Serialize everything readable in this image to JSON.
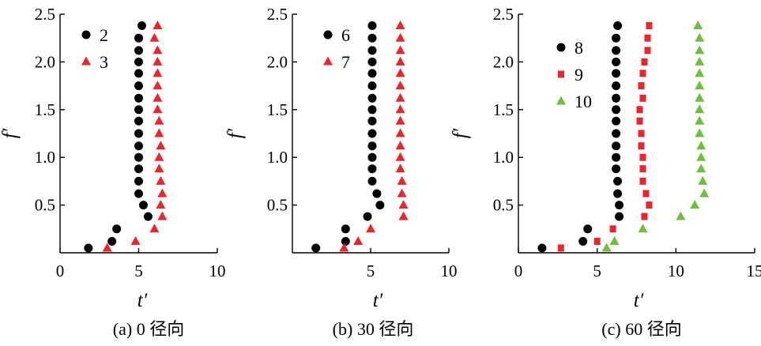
{
  "chart_data": [
    {
      "type": "scatter",
      "caption": "(a) 0 径向",
      "xlabel": "t′",
      "ylabel": "f′",
      "xlim": [
        0,
        10
      ],
      "ylim": [
        0,
        2.5
      ],
      "xticks": [
        {
          "value": 0,
          "label": "0"
        },
        {
          "value": 5,
          "label": "5"
        },
        {
          "value": 10,
          "label": "10"
        }
      ],
      "yticks": [
        {
          "value": 0.5,
          "label": "0.5"
        },
        {
          "value": 1.0,
          "label": "1.0"
        },
        {
          "value": 1.5,
          "label": "1.5"
        },
        {
          "value": 2.0,
          "label": "2.0"
        },
        {
          "value": 2.5,
          "label": "2.5"
        }
      ],
      "legend_position": "top-left",
      "series": [
        {
          "name": "2",
          "marker": "circle",
          "color": "#000000",
          "points": [
            [
              1.8,
              0.05
            ],
            [
              3.3,
              0.12
            ],
            [
              3.6,
              0.25
            ],
            [
              5.6,
              0.38
            ],
            [
              5.3,
              0.5
            ],
            [
              5.0,
              0.62
            ],
            [
              5.0,
              0.75
            ],
            [
              5.0,
              0.88
            ],
            [
              5.0,
              1.0
            ],
            [
              5.0,
              1.12
            ],
            [
              5.0,
              1.25
            ],
            [
              5.0,
              1.38
            ],
            [
              5.0,
              1.5
            ],
            [
              5.0,
              1.62
            ],
            [
              5.0,
              1.75
            ],
            [
              5.0,
              1.88
            ],
            [
              5.0,
              2.0
            ],
            [
              5.0,
              2.12
            ],
            [
              5.0,
              2.25
            ],
            [
              5.2,
              2.38
            ]
          ]
        },
        {
          "name": "3",
          "marker": "triangle",
          "color": "#e8262b",
          "points": [
            [
              3.0,
              0.05
            ],
            [
              4.8,
              0.12
            ],
            [
              6.0,
              0.25
            ],
            [
              6.5,
              0.38
            ],
            [
              6.4,
              0.5
            ],
            [
              6.5,
              0.62
            ],
            [
              6.4,
              0.75
            ],
            [
              6.3,
              0.88
            ],
            [
              6.3,
              1.0
            ],
            [
              6.4,
              1.12
            ],
            [
              6.3,
              1.25
            ],
            [
              6.3,
              1.38
            ],
            [
              6.2,
              1.5
            ],
            [
              6.2,
              1.62
            ],
            [
              6.2,
              1.75
            ],
            [
              6.2,
              1.88
            ],
            [
              6.2,
              2.0
            ],
            [
              6.2,
              2.12
            ],
            [
              6.0,
              2.25
            ],
            [
              6.2,
              2.38
            ]
          ]
        }
      ]
    },
    {
      "type": "scatter",
      "caption": "(b) 30 径向",
      "xlabel": "t′",
      "ylabel": "f′",
      "xlim": [
        0,
        10
      ],
      "ylim": [
        0,
        2.5
      ],
      "xticks": [
        {
          "value": 5,
          "label": "5"
        },
        {
          "value": 10,
          "label": "10"
        }
      ],
      "yticks": [
        {
          "value": 0.5,
          "label": "0.5"
        },
        {
          "value": 1.0,
          "label": "1.0"
        },
        {
          "value": 1.5,
          "label": "1.5"
        },
        {
          "value": 2.0,
          "label": "2.0"
        },
        {
          "value": 2.5,
          "label": "2.5"
        }
      ],
      "legend_position": "top-left",
      "series": [
        {
          "name": "6",
          "marker": "circle",
          "color": "#000000",
          "points": [
            [
              1.5,
              0.05
            ],
            [
              3.4,
              0.12
            ],
            [
              3.4,
              0.25
            ],
            [
              4.8,
              0.38
            ],
            [
              5.6,
              0.5
            ],
            [
              5.4,
              0.62
            ],
            [
              5.1,
              0.75
            ],
            [
              5.1,
              0.88
            ],
            [
              5.1,
              1.0
            ],
            [
              5.1,
              1.12
            ],
            [
              5.1,
              1.25
            ],
            [
              5.1,
              1.38
            ],
            [
              5.1,
              1.5
            ],
            [
              5.1,
              1.62
            ],
            [
              5.1,
              1.75
            ],
            [
              5.1,
              1.88
            ],
            [
              5.1,
              2.0
            ],
            [
              5.1,
              2.12
            ],
            [
              5.1,
              2.25
            ],
            [
              5.1,
              2.38
            ]
          ]
        },
        {
          "name": "7",
          "marker": "triangle",
          "color": "#e8262b",
          "points": [
            [
              3.3,
              0.05
            ],
            [
              4.2,
              0.12
            ],
            [
              5.0,
              0.25
            ],
            [
              7.1,
              0.38
            ],
            [
              7.1,
              0.5
            ],
            [
              7.0,
              0.62
            ],
            [
              7.0,
              0.75
            ],
            [
              6.9,
              0.88
            ],
            [
              6.9,
              1.0
            ],
            [
              6.9,
              1.12
            ],
            [
              6.9,
              1.25
            ],
            [
              6.9,
              1.38
            ],
            [
              6.9,
              1.5
            ],
            [
              6.9,
              1.62
            ],
            [
              6.9,
              1.75
            ],
            [
              6.9,
              1.88
            ],
            [
              6.9,
              2.0
            ],
            [
              6.9,
              2.12
            ],
            [
              6.9,
              2.25
            ],
            [
              6.9,
              2.38
            ]
          ]
        }
      ]
    },
    {
      "type": "scatter",
      "caption": "(c) 60 径向",
      "xlabel": "t′",
      "ylabel": "f′",
      "xlim": [
        0,
        15
      ],
      "ylim": [
        0,
        2.5
      ],
      "xticks": [
        {
          "value": 0,
          "label": "0"
        },
        {
          "value": 5,
          "label": "5"
        },
        {
          "value": 10,
          "label": "10"
        },
        {
          "value": 15,
          "label": "15"
        }
      ],
      "yticks": [
        {
          "value": 0.5,
          "label": "0.5"
        },
        {
          "value": 1.0,
          "label": "1.0"
        },
        {
          "value": 1.5,
          "label": "1.5"
        },
        {
          "value": 2.0,
          "label": "2.0"
        },
        {
          "value": 2.5,
          "label": "2.5"
        }
      ],
      "legend_position": "top-left",
      "series": [
        {
          "name": "8",
          "marker": "circle",
          "color": "#000000",
          "points": [
            [
              1.5,
              0.05
            ],
            [
              4.1,
              0.12
            ],
            [
              4.4,
              0.25
            ],
            [
              6.4,
              0.38
            ],
            [
              6.4,
              0.5
            ],
            [
              6.3,
              0.62
            ],
            [
              6.3,
              0.75
            ],
            [
              6.2,
              0.88
            ],
            [
              6.2,
              1.0
            ],
            [
              6.2,
              1.12
            ],
            [
              6.2,
              1.25
            ],
            [
              6.2,
              1.38
            ],
            [
              6.2,
              1.5
            ],
            [
              6.2,
              1.62
            ],
            [
              6.2,
              1.75
            ],
            [
              6.2,
              1.88
            ],
            [
              6.2,
              2.0
            ],
            [
              6.2,
              2.12
            ],
            [
              6.2,
              2.25
            ],
            [
              6.3,
              2.38
            ]
          ]
        },
        {
          "name": "9",
          "marker": "square",
          "color": "#e8262b",
          "points": [
            [
              2.7,
              0.05
            ],
            [
              5.0,
              0.12
            ],
            [
              6.0,
              0.25
            ],
            [
              8.0,
              0.38
            ],
            [
              8.3,
              0.5
            ],
            [
              8.1,
              0.62
            ],
            [
              7.9,
              0.75
            ],
            [
              7.9,
              0.88
            ],
            [
              7.9,
              1.0
            ],
            [
              7.8,
              1.12
            ],
            [
              7.8,
              1.25
            ],
            [
              7.7,
              1.38
            ],
            [
              7.7,
              1.5
            ],
            [
              7.9,
              1.62
            ],
            [
              7.8,
              1.75
            ],
            [
              7.9,
              1.88
            ],
            [
              8.0,
              2.0
            ],
            [
              8.2,
              2.12
            ],
            [
              8.2,
              2.25
            ],
            [
              8.3,
              2.38
            ]
          ]
        },
        {
          "name": "10",
          "marker": "triangle",
          "color": "#6fbf3f",
          "points": [
            [
              5.6,
              0.05
            ],
            [
              6.1,
              0.12
            ],
            [
              7.9,
              0.25
            ],
            [
              10.3,
              0.38
            ],
            [
              11.2,
              0.5
            ],
            [
              11.8,
              0.62
            ],
            [
              11.7,
              0.75
            ],
            [
              11.6,
              0.88
            ],
            [
              11.6,
              1.0
            ],
            [
              11.6,
              1.12
            ],
            [
              11.5,
              1.25
            ],
            [
              11.5,
              1.38
            ],
            [
              11.5,
              1.5
            ],
            [
              11.5,
              1.62
            ],
            [
              11.5,
              1.75
            ],
            [
              11.5,
              1.88
            ],
            [
              11.5,
              2.0
            ],
            [
              11.5,
              2.12
            ],
            [
              11.5,
              2.25
            ],
            [
              11.4,
              2.38
            ]
          ]
        }
      ]
    }
  ]
}
